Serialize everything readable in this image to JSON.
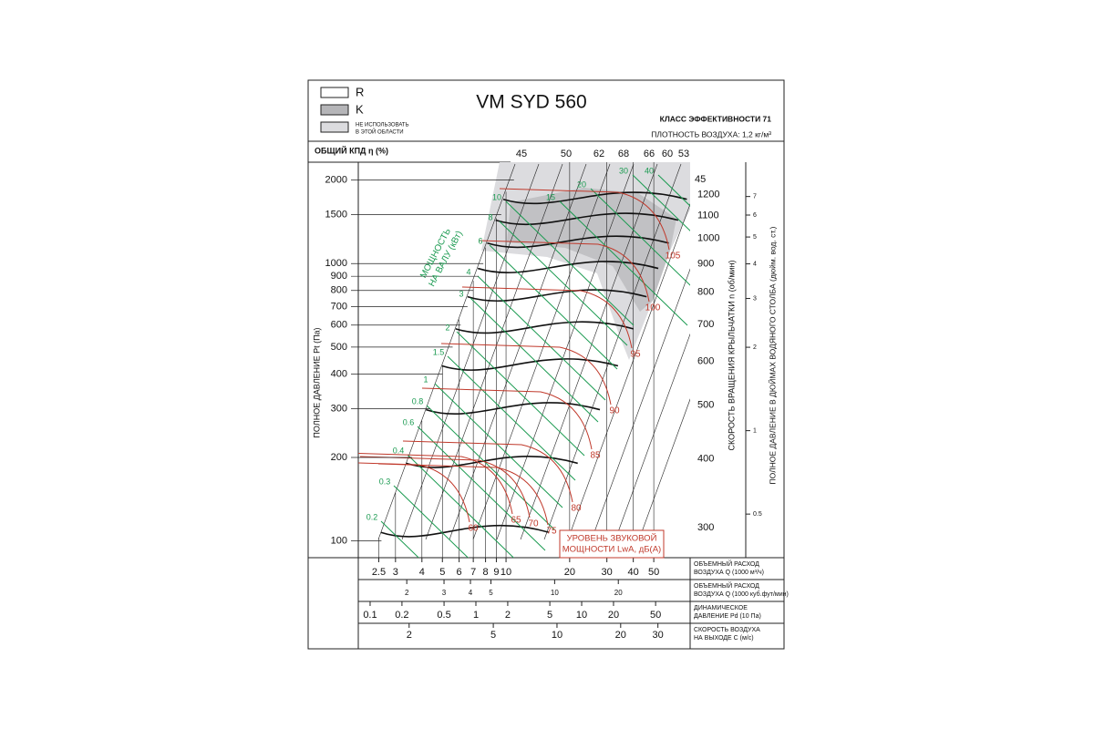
{
  "header": {
    "title": "VM SYD 560",
    "efficiency_class": "КЛАСС ЭФФЕКТИВНОСТИ 71",
    "air_density": "ПЛОТНОСТЬ ВОЗДУХА: 1,2 кг/м³"
  },
  "legend": [
    {
      "label": "R"
    },
    {
      "label": "K"
    },
    {
      "lines": [
        "НЕ ИСПОЛЬЗОВАТЬ",
        "В ЭТОЙ ОБЛАСТИ"
      ]
    }
  ],
  "chart_data": {
    "type": "fan-curve",
    "efficiency_label": "ОБЩИЙ КПД η (%)",
    "efficiency_values": [
      45,
      50,
      62,
      68,
      66,
      60,
      53,
      45
    ],
    "y_axis": {
      "label": "ПОЛНОЕ ДАВЛЕНИЕ Pt (Па)",
      "log": true,
      "lim": [
        87,
        2320
      ],
      "ticks": [
        100,
        200,
        300,
        400,
        500,
        600,
        700,
        800,
        900,
        1000,
        1500,
        2000
      ]
    },
    "rpm_axis": {
      "label": "СКОРОСТЬ ВРАЩЕНИЯ КРЫЛЬЧАТКИ n (об/мин)",
      "log": true,
      "lim": [
        265,
        1374
      ],
      "ticks": [
        300,
        400,
        500,
        600,
        700,
        800,
        900,
        1000,
        1100,
        1200
      ]
    },
    "inch_axis": {
      "label": "ПОЛНОЕ ДАВЛЕНИЕ В ДЮЙМАХ ВОДЯНОГО СТОЛБА (дюйм. вод. ст.)",
      "log": true,
      "lim": [
        0.348,
        9.31
      ],
      "ticks": [
        0.5,
        1,
        2,
        3,
        4,
        5,
        6,
        7
      ]
    },
    "x_axes": [
      {
        "label_lines": [
          "ОБЪЕМНЫЙ РАСХОД",
          "ВОЗДУХА Q (1000 м³/ч)"
        ],
        "log": true,
        "lim": [
          2.0,
          74.3
        ],
        "ticks": [
          2.5,
          3,
          4,
          5,
          6,
          7,
          8,
          9,
          10,
          20,
          30,
          40,
          50
        ]
      },
      {
        "label_lines": [
          "ОБЪЕМНЫЙ РАСХОД",
          "ВОЗДУХА Q (1000 куб.фут/мин)"
        ],
        "log": true,
        "lim": [
          1.18,
          43.7
        ],
        "ticks": [
          2,
          3,
          4,
          5,
          10,
          20
        ]
      },
      {
        "label_lines": [
          "ДИНАМИЧЕСКОЕ",
          "ДАВЛЕНИЕ Pd (10 Па)"
        ],
        "log": true,
        "lim": [
          0.0773,
          106
        ],
        "ticks": [
          0.1,
          0.2,
          0.5,
          1,
          2,
          5,
          10,
          20,
          50
        ]
      },
      {
        "label_lines": [
          "СКОРОСТЬ ВОЗДУХА",
          "НА ВЫХОДЕ С (м/с)"
        ],
        "log": true,
        "lim": [
          1.15,
          42.6
        ],
        "ticks": [
          2,
          5,
          10,
          20,
          30
        ]
      }
    ],
    "power_label_lines": [
      "МОЩНОСТЬ",
      "НА ВАЛУ (кВт)"
    ],
    "power_values": [
      0.2,
      0.3,
      0.4,
      0.6,
      0.8,
      1,
      1.5,
      2,
      3,
      4,
      6,
      8,
      10,
      15,
      20,
      30,
      40
    ],
    "power_color": "#1a9a50",
    "sound_label_lines": [
      "УРОВЕНЬ ЗВУКОВОЙ",
      "МОЩНОСТИ LwA, дБ(A)"
    ],
    "sound_values": [
      60,
      65,
      70,
      75,
      80,
      85,
      90,
      95,
      100,
      105
    ],
    "sound_color": "#c0392b",
    "rpm_color": "#111111"
  }
}
